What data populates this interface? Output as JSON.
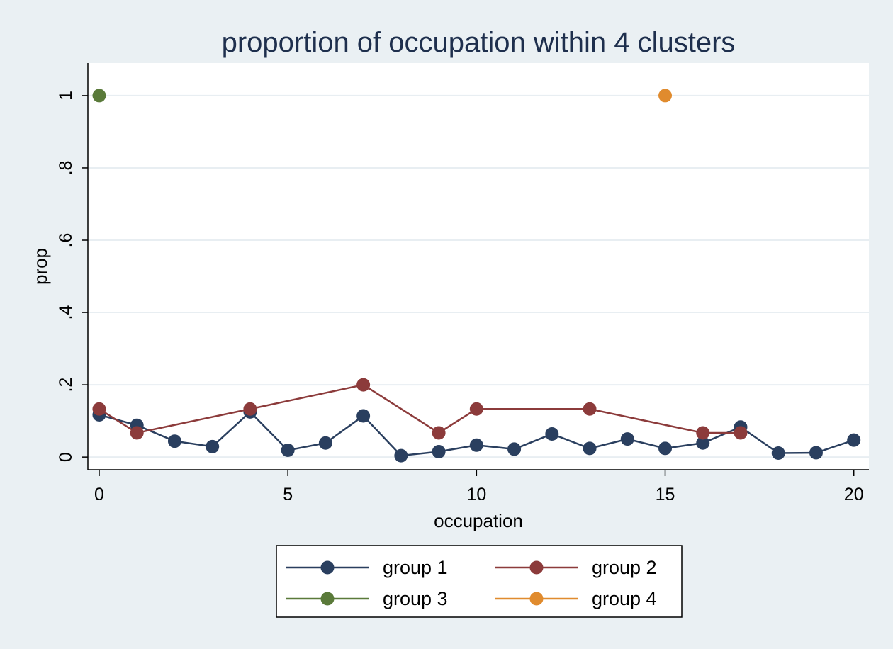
{
  "chart_data": {
    "type": "line",
    "title": "proportion of occupation within 4 clusters",
    "xlabel": "occupation",
    "ylabel": "prop",
    "xlim": [
      -0.3,
      20.4
    ],
    "ylim": [
      -0.035,
      1.09
    ],
    "x_ticks": [
      0,
      5,
      10,
      15,
      20
    ],
    "x_tick_labels": [
      "0",
      "5",
      "10",
      "15",
      "20"
    ],
    "y_ticks": [
      0,
      0.2,
      0.4,
      0.6,
      0.8,
      1
    ],
    "y_tick_labels": [
      "0",
      ".2",
      ".4",
      ".6",
      ".8",
      "1"
    ],
    "grid": true,
    "legend_position": "bottom",
    "series": [
      {
        "name": "group 1",
        "color": "#2a3f5f",
        "x": [
          0,
          1,
          2,
          3,
          4,
          5,
          6,
          7,
          8,
          9,
          10,
          11,
          12,
          13,
          14,
          15,
          16,
          17,
          18,
          19,
          20
        ],
        "y": [
          0.117,
          0.088,
          0.044,
          0.029,
          0.125,
          0.019,
          0.039,
          0.114,
          0.004,
          0.015,
          0.033,
          0.022,
          0.064,
          0.024,
          0.05,
          0.024,
          0.039,
          0.083,
          0.011,
          0.012,
          0.047
        ]
      },
      {
        "name": "group 2",
        "color": "#8c3b3b",
        "x": [
          0,
          1,
          4,
          7,
          9,
          10,
          13,
          16,
          17
        ],
        "y": [
          0.133,
          0.067,
          0.133,
          0.2,
          0.067,
          0.133,
          0.133,
          0.067,
          0.067
        ]
      },
      {
        "name": "group 3",
        "color": "#5a7a3a",
        "x": [
          0
        ],
        "y": [
          1
        ]
      },
      {
        "name": "group 4",
        "color": "#e08b2e",
        "x": [
          15
        ],
        "y": [
          1
        ]
      }
    ]
  }
}
